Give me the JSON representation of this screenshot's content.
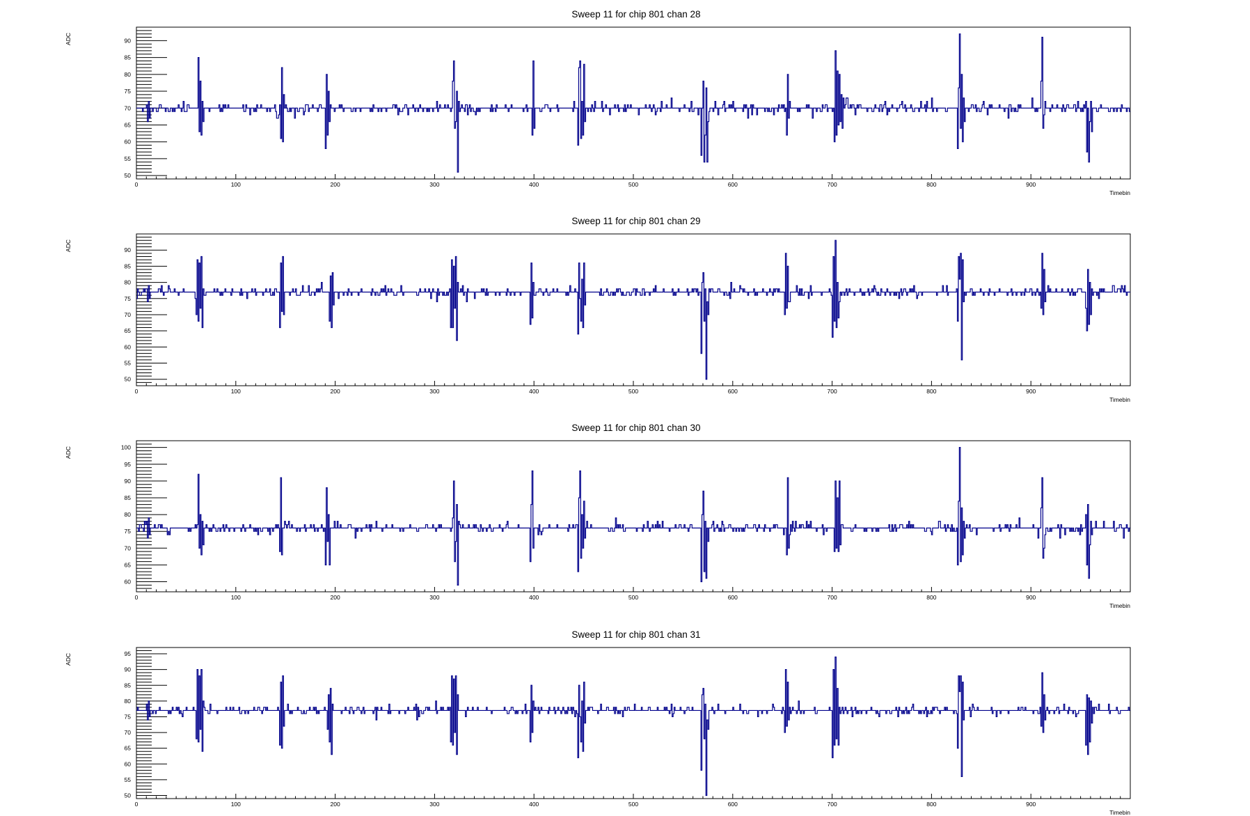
{
  "chart_data": [
    {
      "type": "line",
      "title": "Sweep 11 for chip 801 chan 28",
      "xlabel": "Timebin",
      "ylabel": "ADC",
      "xlim": [
        0,
        1000
      ],
      "ylim": [
        49,
        94
      ],
      "xticks": [
        0,
        100,
        200,
        300,
        400,
        500,
        600,
        700,
        800,
        900
      ],
      "yticks": [
        50,
        55,
        60,
        65,
        70,
        75,
        80,
        85,
        90
      ],
      "baseline": 70,
      "series": [
        {
          "color": "#00008b",
          "spikes": [
            {
              "x": 10,
              "values": [
                71,
                66,
                72,
                67,
                70
              ]
            },
            {
              "x": 62,
              "values": [
                85,
                63,
                78,
                62,
                72,
                66
              ]
            },
            {
              "x": 145,
              "values": [
                61,
                82,
                60,
                74
              ]
            },
            {
              "x": 190,
              "values": [
                58,
                80,
                62,
                75,
                66
              ]
            },
            {
              "x": 318,
              "values": [
                78,
                84,
                64,
                66,
                75,
                51,
                72
              ]
            },
            {
              "x": 398,
              "values": [
                62,
                84,
                64,
                70
              ]
            },
            {
              "x": 444,
              "values": [
                59,
                82,
                84,
                61,
                72,
                62,
                83,
                66
              ]
            },
            {
              "x": 568,
              "values": [
                56,
                70,
                78,
                54,
                62,
                76,
                54,
                66
              ]
            },
            {
              "x": 654,
              "values": [
                62,
                80,
                67,
                72
              ]
            },
            {
              "x": 702,
              "values": [
                60,
                87,
                62,
                81,
                65,
                80,
                66,
                74,
                64,
                73
              ]
            },
            {
              "x": 826,
              "values": [
                58,
                76,
                92,
                64,
                80,
                60,
                73,
                66
              ]
            },
            {
              "x": 910,
              "values": [
                78,
                91,
                64,
                68,
                72
              ]
            },
            {
              "x": 955,
              "values": [
                72,
                57,
                70,
                54,
                66,
                72,
                63
              ]
            }
          ]
        }
      ]
    },
    {
      "type": "line",
      "title": "Sweep 11 for chip 801 chan 29",
      "xlabel": "Timebin",
      "ylabel": "ADC",
      "xlim": [
        0,
        1000
      ],
      "ylim": [
        48,
        95
      ],
      "xticks": [
        0,
        100,
        200,
        300,
        400,
        500,
        600,
        700,
        800,
        900
      ],
      "yticks": [
        50,
        55,
        60,
        65,
        70,
        75,
        80,
        85,
        90
      ],
      "baseline": 77,
      "series": [
        {
          "color": "#00008b",
          "spikes": [
            {
              "x": 10,
              "values": [
                78,
                74,
                79,
                75,
                77
              ]
            },
            {
              "x": 60,
              "values": [
                70,
                87,
                68,
                86,
                72,
                88,
                66,
                78
              ]
            },
            {
              "x": 144,
              "values": [
                66,
                86,
                71,
                88,
                70
              ]
            },
            {
              "x": 194,
              "values": [
                68,
                82,
                66,
                83,
                73
              ]
            },
            {
              "x": 316,
              "values": [
                66,
                87,
                66,
                85,
                72,
                88,
                62,
                80
              ]
            },
            {
              "x": 396,
              "values": [
                67,
                86,
                69,
                80
              ]
            },
            {
              "x": 444,
              "values": [
                64,
                86,
                75,
                68,
                81,
                66,
                86,
                73
              ]
            },
            {
              "x": 568,
              "values": [
                58,
                80,
                83,
                68,
                78,
                50,
                74,
                70
              ]
            },
            {
              "x": 652,
              "values": [
                70,
                89,
                72,
                85,
                74
              ]
            },
            {
              "x": 700,
              "values": [
                63,
                88,
                68,
                93,
                66,
                80,
                69,
                74
              ]
            },
            {
              "x": 826,
              "values": [
                68,
                88,
                81,
                89,
                56,
                87,
                74
              ]
            },
            {
              "x": 910,
              "values": [
                72,
                89,
                70,
                84,
                74
              ]
            },
            {
              "x": 955,
              "values": [
                72,
                65,
                84,
                67,
                80,
                70,
                78,
                76
              ]
            }
          ]
        }
      ]
    },
    {
      "type": "line",
      "title": "Sweep 11 for chip 801 chan 30",
      "xlabel": "Timebin",
      "ylabel": "ADC",
      "xlim": [
        0,
        1000
      ],
      "ylim": [
        57,
        102
      ],
      "xticks": [
        0,
        100,
        200,
        300,
        400,
        500,
        600,
        700,
        800,
        900
      ],
      "yticks": [
        60,
        65,
        70,
        75,
        80,
        85,
        90,
        95,
        100
      ],
      "baseline": 76,
      "series": [
        {
          "color": "#00008b",
          "spikes": [
            {
              "x": 10,
              "values": [
                78,
                73,
                79,
                74,
                76
              ]
            },
            {
              "x": 62,
              "values": [
                92,
                70,
                80,
                68,
                78,
                71
              ]
            },
            {
              "x": 144,
              "values": [
                69,
                91,
                68,
                76
              ]
            },
            {
              "x": 190,
              "values": [
                65,
                88,
                72,
                80,
                65
              ]
            },
            {
              "x": 318,
              "values": [
                79,
                90,
                66,
                72,
                83,
                59,
                78
              ]
            },
            {
              "x": 396,
              "values": [
                66,
                83,
                93,
                70,
                76
              ]
            },
            {
              "x": 444,
              "values": [
                63,
                85,
                93,
                67,
                80,
                70,
                84,
                73
              ]
            },
            {
              "x": 568,
              "values": [
                60,
                80,
                87,
                63,
                78,
                61,
                76,
                72
              ]
            },
            {
              "x": 654,
              "values": [
                68,
                91,
                70,
                74
              ]
            },
            {
              "x": 702,
              "values": [
                69,
                90,
                70,
                85,
                69,
                90,
                71,
                77
              ]
            },
            {
              "x": 826,
              "values": [
                65,
                84,
                100,
                66,
                82,
                68,
                78,
                73
              ]
            },
            {
              "x": 910,
              "values": [
                82,
                91,
                67,
                70,
                74
              ]
            },
            {
              "x": 955,
              "values": [
                80,
                65,
                83,
                61,
                71,
                78,
                74
              ]
            }
          ]
        }
      ]
    },
    {
      "type": "line",
      "title": "Sweep 11 for chip 801 chan 31",
      "xlabel": "Timebin",
      "ylabel": "ADC",
      "xlim": [
        0,
        1000
      ],
      "ylim": [
        49,
        97
      ],
      "xticks": [
        0,
        100,
        200,
        300,
        400,
        500,
        600,
        700,
        800,
        900
      ],
      "yticks": [
        50,
        55,
        60,
        65,
        70,
        75,
        80,
        85,
        90,
        95
      ],
      "baseline": 77,
      "series": [
        {
          "color": "#00008b",
          "spikes": [
            {
              "x": 10,
              "values": [
                79,
                74,
                80,
                75,
                77
              ]
            },
            {
              "x": 60,
              "values": [
                68,
                90,
                67,
                88,
                71,
                90,
                64,
                80
              ]
            },
            {
              "x": 144,
              "values": [
                66,
                86,
                65,
                88,
                72
              ]
            },
            {
              "x": 192,
              "values": [
                71,
                82,
                67,
                84,
                63,
                79
              ]
            },
            {
              "x": 316,
              "values": [
                67,
                88,
                66,
                87,
                70,
                88,
                63,
                82
              ]
            },
            {
              "x": 396,
              "values": [
                67,
                85,
                70,
                80
              ]
            },
            {
              "x": 444,
              "values": [
                62,
                85,
                75,
                67,
                80,
                64,
                86,
                73
              ]
            },
            {
              "x": 568,
              "values": [
                58,
                82,
                84,
                68,
                79,
                50,
                74,
                71
              ]
            },
            {
              "x": 652,
              "values": [
                70,
                90,
                72,
                86,
                74
              ]
            },
            {
              "x": 700,
              "values": [
                62,
                90,
                66,
                94,
                68,
                84,
                66,
                78
              ]
            },
            {
              "x": 826,
              "values": [
                65,
                88,
                83,
                88,
                56,
                86,
                74
              ]
            },
            {
              "x": 910,
              "values": [
                72,
                89,
                70,
                82,
                74
              ]
            },
            {
              "x": 955,
              "values": [
                66,
                82,
                63,
                81,
                67,
                80,
                73,
                78
              ]
            }
          ]
        }
      ]
    }
  ]
}
